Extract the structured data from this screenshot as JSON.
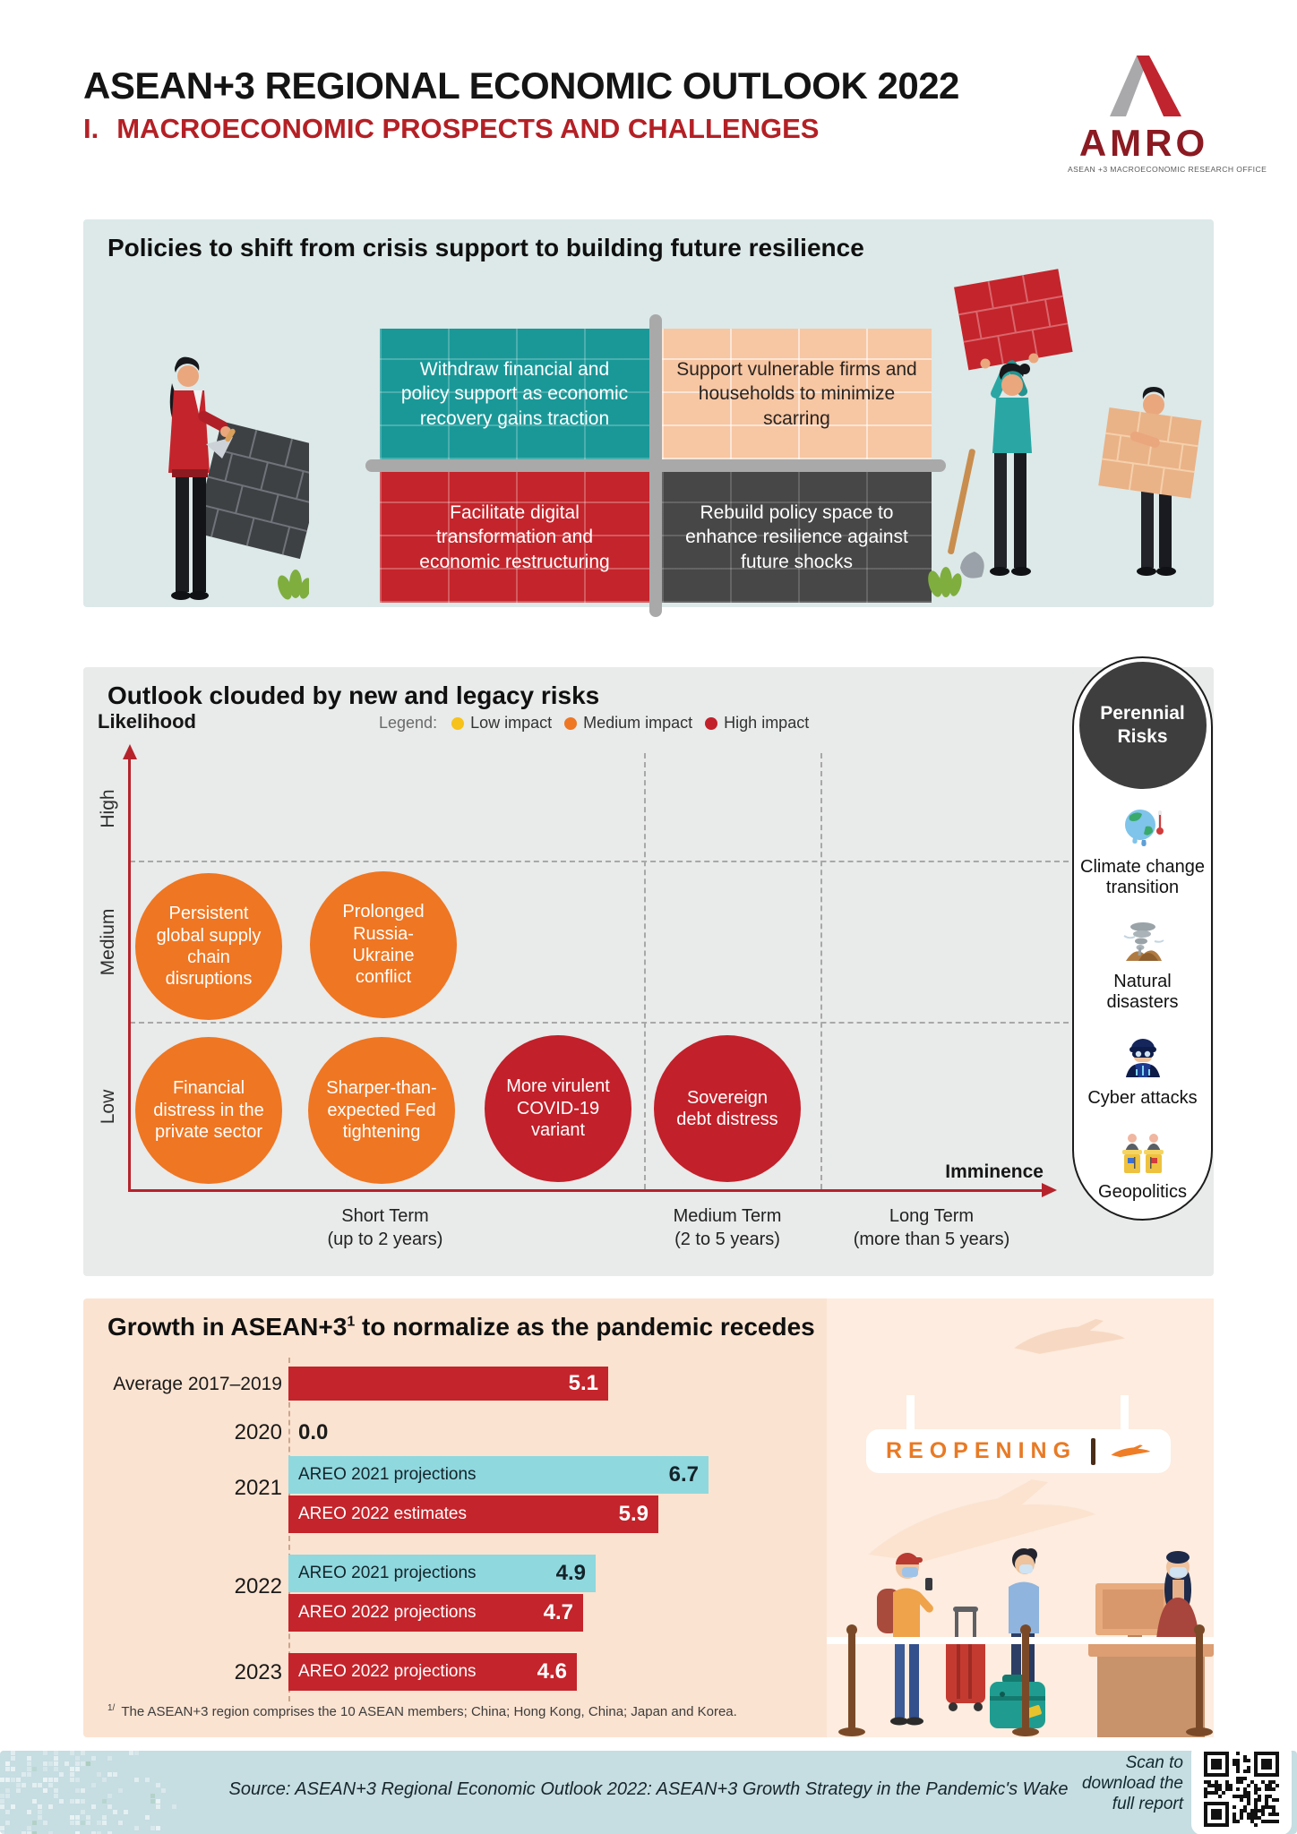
{
  "header": {
    "title": "ASEAN+3 REGIONAL ECONOMIC OUTLOOK 2022",
    "subtitle_prefix": "I.",
    "subtitle": "MACROECONOMIC PROSPECTS AND CHALLENGES",
    "logo_text": "AMRO",
    "logo_caption": "ASEAN +3 MACROECONOMIC RESEARCH OFFICE"
  },
  "policies": {
    "title": "Policies to shift from crisis support to building future resilience",
    "quadrants": [
      "Withdraw financial and policy support as economic recovery gains traction",
      "Support vulnerable firms and households to minimize scarring",
      "Facilitate digital transformation and economic restructuring",
      "Rebuild policy space to enhance resilience against future shocks"
    ]
  },
  "risks": {
    "title": "Outlook clouded by new and legacy risks",
    "legend_label": "Legend:",
    "legend": [
      {
        "label": "Low impact",
        "color": "#f6c21b"
      },
      {
        "label": "Medium impact",
        "color": "#ef7622"
      },
      {
        "label": "High impact",
        "color": "#c2202a"
      }
    ],
    "y_axis_label": "Likelihood",
    "x_axis_label": "Imminence",
    "y_ticks": [
      "High",
      "Medium",
      "Low"
    ],
    "x_ticks": [
      {
        "t": "Short Term",
        "s": "(up to 2 years)"
      },
      {
        "t": "Medium Term",
        "s": "(2 to 5 years)"
      },
      {
        "t": "Long Term",
        "s": "(more than 5 years)"
      }
    ],
    "bubbles": [
      "Persistent global supply chain disruptions",
      "Prolonged Russia-Ukraine conflict",
      "Financial distress in the private sector",
      "Sharper-than-expected Fed tightening",
      "More virulent COVID-19 variant",
      "Sovereign debt distress"
    ],
    "perennial": {
      "title": "Perennial Risks",
      "items": [
        "Climate change transition",
        "Natural disasters",
        "Cyber attacks",
        "Geopolitics"
      ]
    }
  },
  "growth": {
    "title_main": "Growth in ASEAN+3",
    "title_sup": "1",
    "title_rest": " to normalize as the pandemic recedes",
    "row_labels": [
      "Average 2017–2019",
      "2020",
      "2021",
      "2022",
      "2023"
    ],
    "zero_value": "0.0",
    "bars": [
      {
        "series": "",
        "value": "5.1"
      },
      {
        "series": "AREO 2021 projections",
        "value": "6.7"
      },
      {
        "series": "AREO 2022 estimates",
        "value": "5.9"
      },
      {
        "series": "AREO 2021 projections",
        "value": "4.9"
      },
      {
        "series": "AREO 2022 projections",
        "value": "4.7"
      },
      {
        "series": "AREO 2022 projections",
        "value": "4.6"
      }
    ],
    "reopening_sign": "REOPENING",
    "footnote_marker": "1/",
    "footnote": "The ASEAN+3 region comprises the 10 ASEAN members; China; Hong Kong, China; Japan and Korea."
  },
  "footer": {
    "source": "Source: ASEAN+3 Regional Economic Outlook 2022: ASEAN+3 Growth Strategy in the Pandemic's Wake",
    "scan_note": "Scan to download the full report"
  },
  "colors": {
    "accent_red": "#c4242b",
    "teal_bar": "#8fd8de",
    "bubble_orange": "#ef7622",
    "bubble_red": "#c2202a",
    "panel_policy": "#dce9e8",
    "panel_risk": "#e9eaea",
    "panel_growth": "#fbe3d1",
    "footer_blue": "#c6dde2",
    "subtitle_red": "#b42025"
  },
  "chart_data": [
    {
      "type": "scatter",
      "title": "Outlook clouded by new and legacy risks",
      "xlabel": "Imminence",
      "ylabel": "Likelihood",
      "x_categories": [
        "Short Term (up to 2 years)",
        "Medium Term (2 to 5 years)",
        "Long Term (more than 5 years)"
      ],
      "y_categories": [
        "Low",
        "Medium",
        "High"
      ],
      "legend": [
        "Low impact",
        "Medium impact",
        "High impact"
      ],
      "legend_position": "top",
      "grid": "dashed",
      "points": [
        {
          "label": "Persistent global supply chain disruptions",
          "x": "Short Term",
          "y": "Medium",
          "impact": "Medium impact"
        },
        {
          "label": "Prolonged Russia-Ukraine conflict",
          "x": "Short Term",
          "y": "Medium",
          "impact": "Medium impact"
        },
        {
          "label": "Financial distress in the private sector",
          "x": "Short Term",
          "y": "Low",
          "impact": "Medium impact"
        },
        {
          "label": "Sharper-than-expected Fed tightening",
          "x": "Short Term",
          "y": "Low",
          "impact": "Medium impact"
        },
        {
          "label": "More virulent COVID-19 variant",
          "x": "Short Term",
          "y": "Low",
          "impact": "High impact"
        },
        {
          "label": "Sovereign debt distress",
          "x": "Medium Term",
          "y": "Low",
          "impact": "High impact"
        }
      ],
      "perennial_risks": [
        "Climate change transition",
        "Natural disasters",
        "Cyber attacks",
        "Geopolitics"
      ]
    },
    {
      "type": "bar",
      "orientation": "horizontal",
      "title": "Growth in ASEAN+3 to normalize as the pandemic recedes",
      "xlim": [
        0,
        7
      ],
      "rows": [
        {
          "category": "Average 2017–2019",
          "series": "",
          "value": 5.1,
          "color": "#c4242b"
        },
        {
          "category": "2020",
          "series": "",
          "value": 0.0,
          "color": null
        },
        {
          "category": "2021",
          "series": "AREO 2021 projections",
          "value": 6.7,
          "color": "#8fd8de"
        },
        {
          "category": "2021",
          "series": "AREO 2022 estimates",
          "value": 5.9,
          "color": "#c4242b"
        },
        {
          "category": "2022",
          "series": "AREO 2021 projections",
          "value": 4.9,
          "color": "#8fd8de"
        },
        {
          "category": "2022",
          "series": "AREO 2022 projections",
          "value": 4.7,
          "color": "#c4242b"
        },
        {
          "category": "2023",
          "series": "AREO 2022 projections",
          "value": 4.6,
          "color": "#c4242b"
        }
      ],
      "footnote": "1/ The ASEAN+3 region comprises the 10 ASEAN members; China; Hong Kong, China; Japan and Korea."
    }
  ]
}
